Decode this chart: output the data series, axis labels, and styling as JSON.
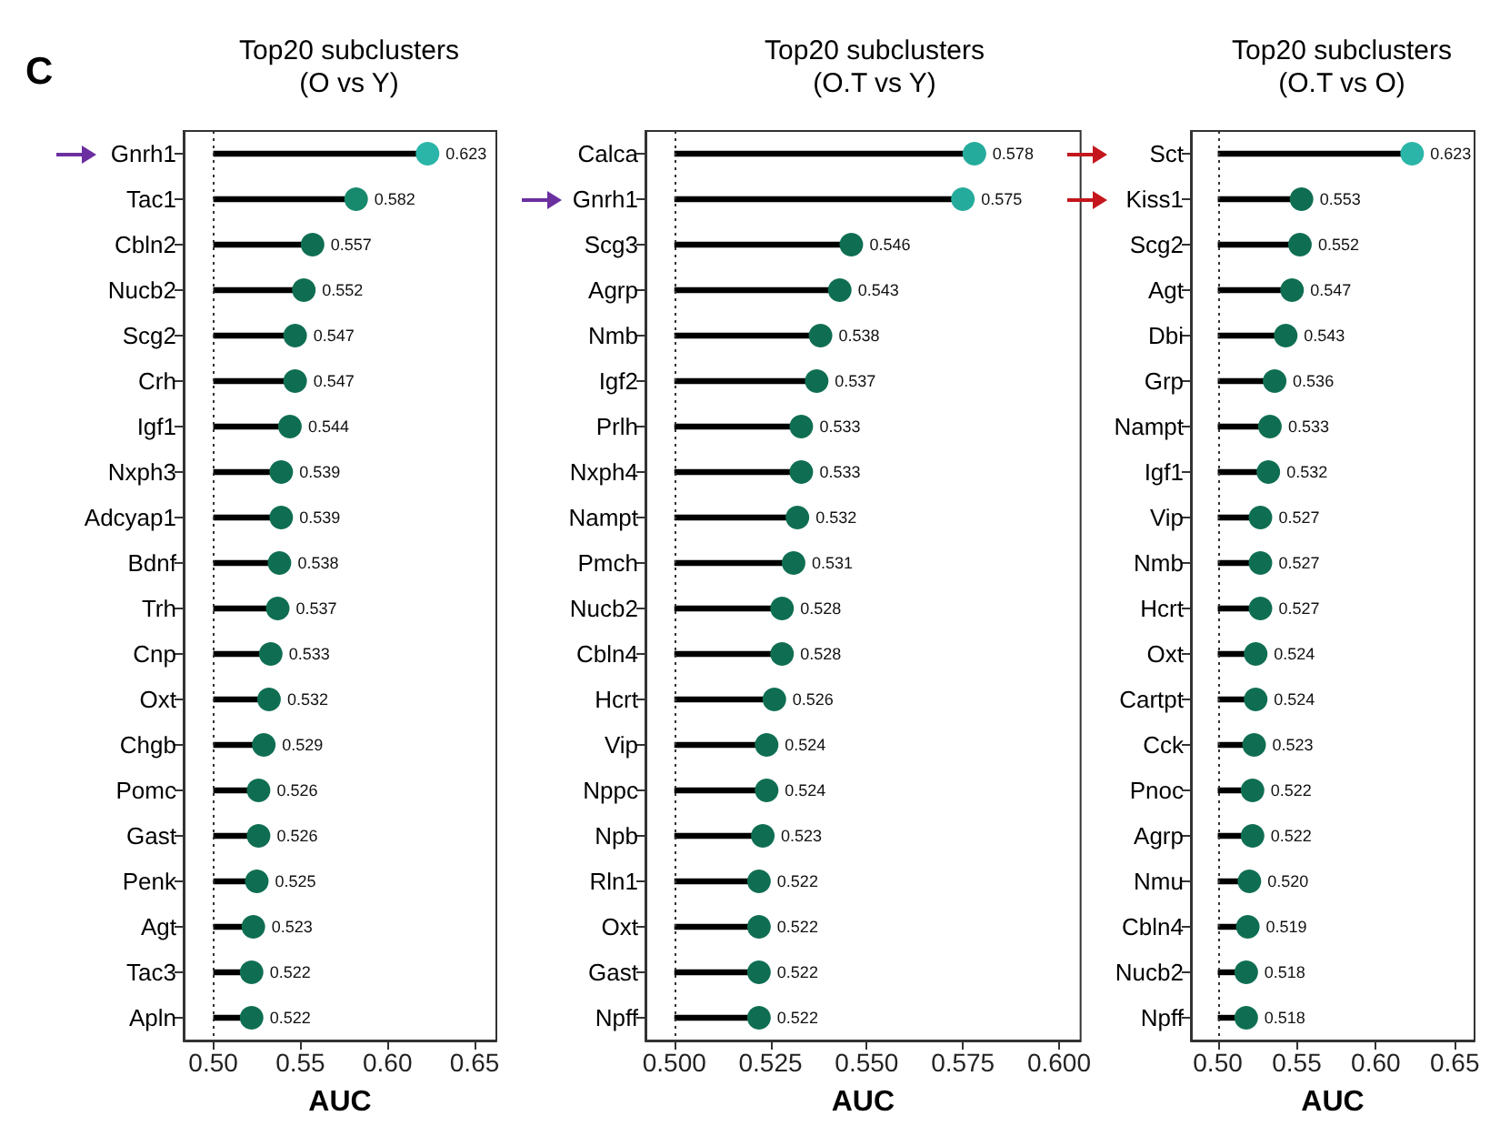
{
  "chart_data": [
    {
      "type": "lollipop",
      "orientation": "horizontal",
      "title": "Top20 subclusters\n(O vs Y)",
      "xlabel": "AUC",
      "annotations": [
        "C"
      ],
      "categories": [
        "Gnrh1",
        "Tac1",
        "Cbln2",
        "Nucb2",
        "Scg2",
        "Crh",
        "Igf1",
        "Nxph3",
        "Adcyap1",
        "Bdnf",
        "Trh",
        "Cnp",
        "Oxt",
        "Chgb",
        "Pomc",
        "Gast",
        "Penk",
        "Agt",
        "Tac3",
        "Apln"
      ],
      "values": [
        0.623,
        0.582,
        0.557,
        0.552,
        0.547,
        0.547,
        0.544,
        0.539,
        0.539,
        0.538,
        0.537,
        0.533,
        0.532,
        0.529,
        0.526,
        0.526,
        0.525,
        0.523,
        0.522,
        0.522
      ],
      "value_labels": [
        "0.623",
        "0.582",
        "0.557",
        "0.552",
        "0.547",
        "0.547",
        "0.544",
        "0.539",
        "0.539",
        "0.538",
        "0.537",
        "0.533",
        "0.532",
        "0.529",
        "0.526",
        "0.526",
        "0.525",
        "0.523",
        "0.522",
        "0.522"
      ],
      "colors": [
        "#2ab5a8",
        "#17896c",
        "#0f6e52",
        "#0f6e52",
        "#0f6e52",
        "#0f6e52",
        "#0f6e52",
        "#0f6e52",
        "#0f6e52",
        "#0f6e52",
        "#0f6e52",
        "#0f6e52",
        "#0f6e52",
        "#0f6e52",
        "#0f6e52",
        "#0f6e52",
        "#0f6e52",
        "#0f6e52",
        "#0f6e52",
        "#0f6e52"
      ],
      "xlim": [
        0.483,
        0.6625
      ],
      "xticks": [
        {
          "value": 0.5,
          "label": "0.50"
        },
        {
          "value": 0.55,
          "label": "0.55"
        },
        {
          "value": 0.6,
          "label": "0.60"
        },
        {
          "value": 0.65,
          "label": "0.65"
        }
      ],
      "ref_lines": [
        {
          "axis": "x",
          "value": 0.5,
          "line_style": "dotted"
        }
      ],
      "grid": false
    },
    {
      "type": "lollipop",
      "orientation": "horizontal",
      "title": "Top20 subclusters\n(O.T vs Y)",
      "xlabel": "AUC",
      "categories": [
        "Calca",
        "Gnrh1",
        "Scg3",
        "Agrp",
        "Nmb",
        "Igf2",
        "Prlh",
        "Nxph4",
        "Nampt",
        "Pmch",
        "Nucb2",
        "Cbln4",
        "Hcrt",
        "Vip",
        "Nppc",
        "Npb",
        "Rln1",
        "Oxt",
        "Gast",
        "Npff"
      ],
      "values": [
        0.578,
        0.575,
        0.546,
        0.543,
        0.538,
        0.537,
        0.533,
        0.533,
        0.532,
        0.531,
        0.528,
        0.528,
        0.526,
        0.524,
        0.524,
        0.523,
        0.522,
        0.522,
        0.522,
        0.522
      ],
      "value_labels": [
        "0.578",
        "0.575",
        "0.546",
        "0.543",
        "0.538",
        "0.537",
        "0.533",
        "0.533",
        "0.532",
        "0.531",
        "0.528",
        "0.528",
        "0.526",
        "0.524",
        "0.524",
        "0.523",
        "0.522",
        "0.522",
        "0.522",
        "0.522"
      ],
      "colors": [
        "#25ab9c",
        "#25ab9c",
        "#0f6e52",
        "#0f6e52",
        "#0f6e52",
        "#0f6e52",
        "#0f6e52",
        "#0f6e52",
        "#0f6e52",
        "#0f6e52",
        "#0f6e52",
        "#0f6e52",
        "#0f6e52",
        "#0f6e52",
        "#0f6e52",
        "#0f6e52",
        "#0f6e52",
        "#0f6e52",
        "#0f6e52",
        "#0f6e52"
      ],
      "xlim": [
        0.4925,
        0.6056
      ],
      "xticks": [
        {
          "value": 0.5,
          "label": "0.500"
        },
        {
          "value": 0.525,
          "label": "0.525"
        },
        {
          "value": 0.55,
          "label": "0.550"
        },
        {
          "value": 0.575,
          "label": "0.575"
        },
        {
          "value": 0.6,
          "label": "0.600"
        }
      ],
      "ref_lines": [
        {
          "axis": "x",
          "value": 0.5,
          "line_style": "dotted"
        }
      ],
      "grid": false
    },
    {
      "type": "lollipop",
      "orientation": "horizontal",
      "title": "Top20 subclusters\n(O.T vs O)",
      "xlabel": "AUC",
      "categories": [
        "Sct",
        "Kiss1",
        "Scg2",
        "Agt",
        "Dbi",
        "Grp",
        "Nampt",
        "Igf1",
        "Vip",
        "Nmb",
        "Hcrt",
        "Oxt",
        "Cartpt",
        "Cck",
        "Pnoc",
        "Agrp",
        "Nmu",
        "Cbln4",
        "Nucb2",
        "Npff"
      ],
      "values": [
        0.623,
        0.553,
        0.552,
        0.547,
        0.543,
        0.536,
        0.533,
        0.532,
        0.527,
        0.527,
        0.527,
        0.524,
        0.524,
        0.523,
        0.522,
        0.522,
        0.52,
        0.519,
        0.518,
        0.518
      ],
      "value_labels": [
        "0.623",
        "0.553",
        "0.552",
        "0.547",
        "0.543",
        "0.536",
        "0.533",
        "0.532",
        "0.527",
        "0.527",
        "0.527",
        "0.524",
        "0.524",
        "0.523",
        "0.522",
        "0.522",
        "0.520",
        "0.519",
        "0.518",
        "0.518"
      ],
      "colors": [
        "#2ab5a8",
        "#0f6e52",
        "#0f6e52",
        "#0f6e52",
        "#0f6e52",
        "#0f6e52",
        "#0f6e52",
        "#0f6e52",
        "#0f6e52",
        "#0f6e52",
        "#0f6e52",
        "#0f6e52",
        "#0f6e52",
        "#0f6e52",
        "#0f6e52",
        "#0f6e52",
        "#0f6e52",
        "#0f6e52",
        "#0f6e52",
        "#0f6e52"
      ],
      "xlim": [
        0.483,
        0.6625
      ],
      "xticks": [
        {
          "value": 0.5,
          "label": "0.50"
        },
        {
          "value": 0.55,
          "label": "0.55"
        },
        {
          "value": 0.6,
          "label": "0.60"
        },
        {
          "value": 0.65,
          "label": "0.65"
        }
      ],
      "ref_lines": [
        {
          "axis": "x",
          "value": 0.5,
          "line_style": "dotted"
        }
      ],
      "grid": false
    }
  ]
}
